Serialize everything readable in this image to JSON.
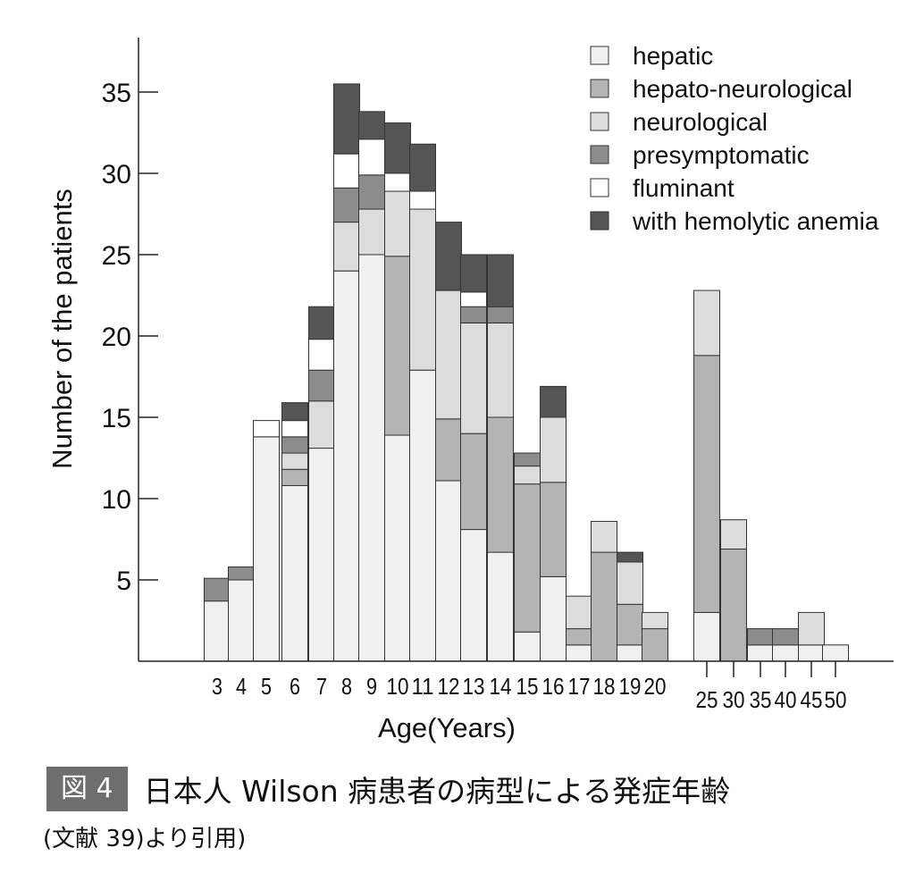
{
  "chart_data": {
    "type": "bar",
    "stacked": true,
    "xlabel": "Age(Years)",
    "ylabel": "Number of the patients",
    "ylim": [
      0,
      37
    ],
    "yticks": [
      5,
      10,
      15,
      20,
      25,
      30,
      35
    ],
    "grid": false,
    "legend_position": "top-right",
    "categories": [
      "3",
      "4",
      "5",
      "6",
      "7",
      "8",
      "9",
      "10",
      "11",
      "12",
      "13",
      "14",
      "15",
      "16",
      "17",
      "18",
      "19",
      "20",
      "25",
      "30",
      "35",
      "40",
      "45",
      "50"
    ],
    "series": [
      {
        "name": "hepatic",
        "color": "#f0f0f0",
        "values": [
          3.7,
          5,
          13.8,
          10.8,
          13.1,
          24,
          25,
          13.9,
          17.9,
          11.1,
          8.1,
          6.7,
          1.8,
          5.2,
          1,
          0,
          1,
          0,
          3,
          0,
          1,
          1,
          1,
          1
        ]
      },
      {
        "name": "hepato-neurological",
        "color": "#b4b4b4",
        "values": [
          0,
          0,
          0,
          1,
          0,
          0,
          0,
          11,
          0,
          3.8,
          5.9,
          8.3,
          9.1,
          5.8,
          1,
          6.7,
          2.5,
          2,
          15.8,
          6.9,
          0,
          0,
          0,
          0
        ]
      },
      {
        "name": "neurological",
        "color": "#dcdcdc",
        "values": [
          0,
          0,
          0,
          1,
          2.9,
          3,
          2.8,
          4,
          9.9,
          7.9,
          6.8,
          5.8,
          1.1,
          4,
          2,
          1.9,
          2.6,
          1,
          4,
          1.8,
          0,
          0,
          2,
          0
        ]
      },
      {
        "name": "presymptomatic",
        "color": "#8c8c8c",
        "values": [
          1.4,
          0.8,
          0,
          1,
          1.9,
          2.1,
          2.1,
          0,
          0,
          0,
          1,
          1,
          0.8,
          0,
          0,
          0,
          0,
          0,
          0,
          0,
          1,
          1,
          0,
          0
        ]
      },
      {
        "name": "fluminant",
        "color": "#ffffff",
        "values": [
          0,
          0,
          1,
          1,
          1.9,
          2.1,
          2.2,
          1.1,
          1.1,
          0,
          0.9,
          0,
          0,
          0,
          0,
          0,
          0,
          0,
          0,
          0,
          0,
          0,
          0,
          0
        ]
      },
      {
        "name": "with hemolytic anemia",
        "color": "#555555",
        "values": [
          0,
          0,
          0,
          1.1,
          2,
          4.3,
          1.7,
          3.1,
          2.9,
          4.2,
          2.3,
          3.2,
          0,
          1.9,
          0,
          0,
          0.6,
          0,
          0,
          0,
          0,
          0,
          0,
          0
        ]
      }
    ]
  },
  "caption": {
    "figure_label": "図 4",
    "title": "日本人 Wilson 病患者の病型による発症年齢",
    "source": "(文献 39)より引用)"
  }
}
